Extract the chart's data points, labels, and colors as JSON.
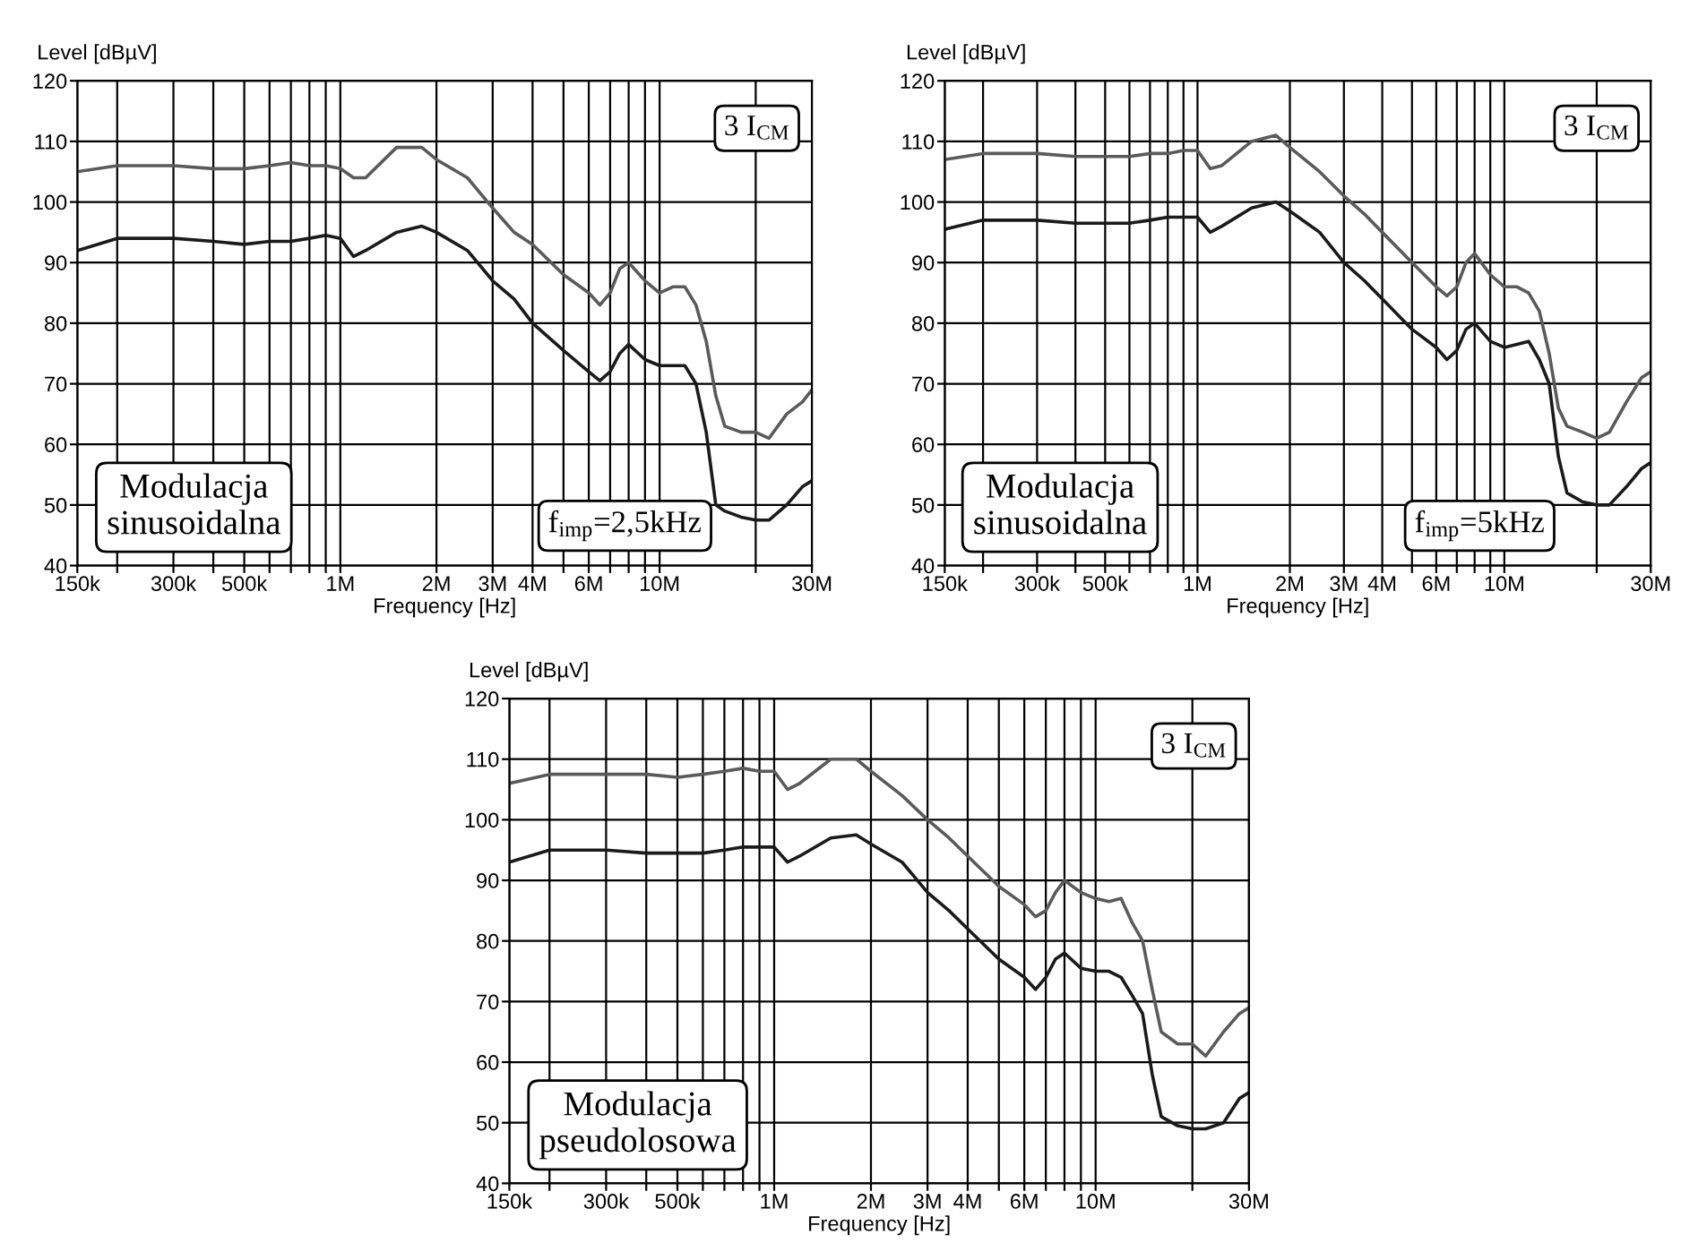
{
  "chart_data": [
    {
      "type": "line",
      "xlabel": "Frequency [Hz]",
      "ylabel": "Level [dBµV]",
      "log": "x",
      "grid": true,
      "legend": false,
      "annotations": [
        "3 I$_{CM}$",
        "Modulacja\nsinusoidalna",
        "f$_{imp}$=2,5kHz"
      ],
      "xlim": [
        150000,
        30000000
      ],
      "ylim": [
        40,
        120
      ],
      "yticks": [
        40,
        50,
        60,
        70,
        80,
        90,
        100,
        110,
        120
      ],
      "xticks": [
        {
          "value": 150000,
          "label": "150k"
        },
        {
          "value": 200000,
          "label": null
        },
        {
          "value": 300000,
          "label": "300k"
        },
        {
          "value": 400000,
          "label": null
        },
        {
          "value": 500000,
          "label": "500k"
        },
        {
          "value": 600000,
          "label": null
        },
        {
          "value": 700000,
          "label": null
        },
        {
          "value": 800000,
          "label": null
        },
        {
          "value": 900000,
          "label": null
        },
        {
          "value": 1000000,
          "label": "1M"
        },
        {
          "value": 2000000,
          "label": "2M"
        },
        {
          "value": 3000000,
          "label": "3M"
        },
        {
          "value": 4000000,
          "label": "4M"
        },
        {
          "value": 5000000,
          "label": null
        },
        {
          "value": 6000000,
          "label": "6M"
        },
        {
          "value": 7000000,
          "label": null
        },
        {
          "value": 8000000,
          "label": null
        },
        {
          "value": 9000000,
          "label": null
        },
        {
          "value": 10000000,
          "label": "10M"
        },
        {
          "value": 20000000,
          "label": null
        },
        {
          "value": 30000000,
          "label": "30M"
        }
      ],
      "x": [
        150000,
        200000,
        300000,
        400000,
        500000,
        600000,
        700000,
        800000,
        900000,
        1000000,
        1100000,
        1200000,
        1500000,
        1800000,
        2000000,
        2500000,
        3000000,
        3500000,
        4000000,
        5000000,
        6000000,
        6500000,
        7000000,
        7500000,
        8000000,
        9000000,
        10000000,
        11000000,
        12000000,
        13000000,
        14000000,
        15000000,
        16000000,
        18000000,
        20000000,
        22000000,
        25000000,
        28000000,
        30000000
      ],
      "series": [
        {
          "color": "#5a5a5a",
          "values": [
            105,
            106,
            106,
            105.5,
            105.5,
            106,
            106.5,
            106,
            106,
            105.5,
            104,
            104,
            109,
            109,
            107,
            104,
            99,
            95,
            93,
            88,
            85,
            83,
            85,
            89,
            90,
            87,
            85,
            86,
            86,
            83,
            77,
            68,
            63,
            62,
            62,
            61,
            65,
            67,
            69
          ]
        },
        {
          "color": "#1a1a1a",
          "values": [
            92,
            94,
            94,
            93.5,
            93,
            93.5,
            93.5,
            94,
            94.5,
            94,
            91,
            92,
            95,
            96,
            95,
            92,
            87,
            84,
            80,
            75.5,
            72,
            70.5,
            72,
            75,
            76.5,
            74,
            73,
            73,
            73,
            70,
            62,
            50,
            49,
            48,
            47.5,
            47.5,
            50,
            53,
            54
          ]
        }
      ]
    },
    {
      "type": "line",
      "xlabel": "Frequency [Hz]",
      "ylabel": "Level [dBµV]",
      "log": "x",
      "grid": true,
      "legend": false,
      "annotations": [
        "3 I$_{CM}$",
        "Modulacja\nsinusoidalna",
        "f$_{imp}$=5kHz"
      ],
      "xlim": [
        150000,
        30000000
      ],
      "ylim": [
        40,
        120
      ],
      "yticks": [
        40,
        50,
        60,
        70,
        80,
        90,
        100,
        110,
        120
      ],
      "xticks": [
        {
          "value": 150000,
          "label": "150k"
        },
        {
          "value": 200000,
          "label": null
        },
        {
          "value": 300000,
          "label": "300k"
        },
        {
          "value": 400000,
          "label": null
        },
        {
          "value": 500000,
          "label": "500k"
        },
        {
          "value": 600000,
          "label": null
        },
        {
          "value": 700000,
          "label": null
        },
        {
          "value": 800000,
          "label": null
        },
        {
          "value": 900000,
          "label": null
        },
        {
          "value": 1000000,
          "label": "1M"
        },
        {
          "value": 2000000,
          "label": "2M"
        },
        {
          "value": 3000000,
          "label": "3M"
        },
        {
          "value": 4000000,
          "label": "4M"
        },
        {
          "value": 5000000,
          "label": null
        },
        {
          "value": 6000000,
          "label": "6M"
        },
        {
          "value": 7000000,
          "label": null
        },
        {
          "value": 8000000,
          "label": null
        },
        {
          "value": 9000000,
          "label": null
        },
        {
          "value": 10000000,
          "label": "10M"
        },
        {
          "value": 20000000,
          "label": null
        },
        {
          "value": 30000000,
          "label": "30M"
        }
      ],
      "x": [
        150000,
        200000,
        300000,
        400000,
        500000,
        600000,
        700000,
        800000,
        900000,
        1000000,
        1100000,
        1200000,
        1500000,
        1800000,
        2000000,
        2500000,
        3000000,
        3500000,
        4000000,
        5000000,
        6000000,
        6500000,
        7000000,
        7500000,
        8000000,
        9000000,
        10000000,
        11000000,
        12000000,
        13000000,
        14000000,
        15000000,
        16000000,
        18000000,
        20000000,
        22000000,
        25000000,
        28000000,
        30000000
      ],
      "series": [
        {
          "color": "#5a5a5a",
          "values": [
            107,
            108,
            108,
            107.5,
            107.5,
            107.5,
            108,
            108,
            108.5,
            108.5,
            105.5,
            106,
            110,
            111,
            109,
            105,
            101,
            98,
            95,
            90,
            86,
            84.5,
            86,
            90,
            91.5,
            88,
            86,
            86,
            85,
            82,
            75,
            66,
            63,
            62,
            61,
            62,
            67,
            71,
            72
          ]
        },
        {
          "color": "#1a1a1a",
          "values": [
            95.5,
            97,
            97,
            96.5,
            96.5,
            96.5,
            97,
            97.5,
            97.5,
            97.5,
            95,
            96,
            99,
            100,
            98.5,
            95,
            90,
            87,
            84,
            79,
            76,
            74,
            75.5,
            79,
            80,
            77,
            76,
            76.5,
            77,
            74,
            70,
            58,
            52,
            50.5,
            50,
            50,
            53,
            56,
            57
          ]
        }
      ]
    },
    {
      "type": "line",
      "xlabel": "Frequency [Hz]",
      "ylabel": "Level [dBµV]",
      "log": "x",
      "grid": true,
      "legend": false,
      "annotations": [
        "3 I$_{CM}$",
        "Modulacja\npseudolosowa"
      ],
      "xlim": [
        150000,
        30000000
      ],
      "ylim": [
        40,
        120
      ],
      "yticks": [
        40,
        50,
        60,
        70,
        80,
        90,
        100,
        110,
        120
      ],
      "xticks": [
        {
          "value": 150000,
          "label": "150k"
        },
        {
          "value": 200000,
          "label": null
        },
        {
          "value": 300000,
          "label": "300k"
        },
        {
          "value": 400000,
          "label": null
        },
        {
          "value": 500000,
          "label": "500k"
        },
        {
          "value": 600000,
          "label": null
        },
        {
          "value": 700000,
          "label": null
        },
        {
          "value": 800000,
          "label": null
        },
        {
          "value": 900000,
          "label": null
        },
        {
          "value": 1000000,
          "label": "1M"
        },
        {
          "value": 2000000,
          "label": "2M"
        },
        {
          "value": 3000000,
          "label": "3M"
        },
        {
          "value": 4000000,
          "label": "4M"
        },
        {
          "value": 5000000,
          "label": null
        },
        {
          "value": 6000000,
          "label": "6M"
        },
        {
          "value": 7000000,
          "label": null
        },
        {
          "value": 8000000,
          "label": null
        },
        {
          "value": 9000000,
          "label": null
        },
        {
          "value": 10000000,
          "label": "10M"
        },
        {
          "value": 20000000,
          "label": null
        },
        {
          "value": 30000000,
          "label": "30M"
        }
      ],
      "x": [
        150000,
        200000,
        300000,
        400000,
        500000,
        600000,
        700000,
        800000,
        900000,
        1000000,
        1100000,
        1200000,
        1500000,
        1800000,
        2000000,
        2500000,
        3000000,
        3500000,
        4000000,
        5000000,
        6000000,
        6500000,
        7000000,
        7500000,
        8000000,
        9000000,
        10000000,
        11000000,
        12000000,
        13000000,
        14000000,
        15000000,
        16000000,
        18000000,
        20000000,
        22000000,
        25000000,
        28000000,
        30000000
      ],
      "series": [
        {
          "color": "#5a5a5a",
          "values": [
            106,
            107.5,
            107.5,
            107.5,
            107,
            107.5,
            108,
            108.5,
            108,
            108,
            105,
            106,
            110,
            110,
            108,
            104,
            100,
            97,
            94,
            89,
            86,
            84,
            85,
            88,
            90,
            88,
            87,
            86.5,
            87,
            83,
            80,
            72,
            65,
            63,
            63,
            61,
            65,
            68,
            69
          ]
        },
        {
          "color": "#1a1a1a",
          "values": [
            93,
            95,
            95,
            94.5,
            94.5,
            94.5,
            95,
            95.5,
            95.5,
            95.5,
            93,
            94,
            97,
            97.5,
            96,
            93,
            88,
            85,
            82,
            77,
            74,
            72,
            74,
            77,
            78,
            75.5,
            75,
            75,
            74,
            71,
            68,
            58,
            51,
            49.5,
            49,
            49,
            50,
            54,
            55
          ]
        }
      ]
    }
  ]
}
